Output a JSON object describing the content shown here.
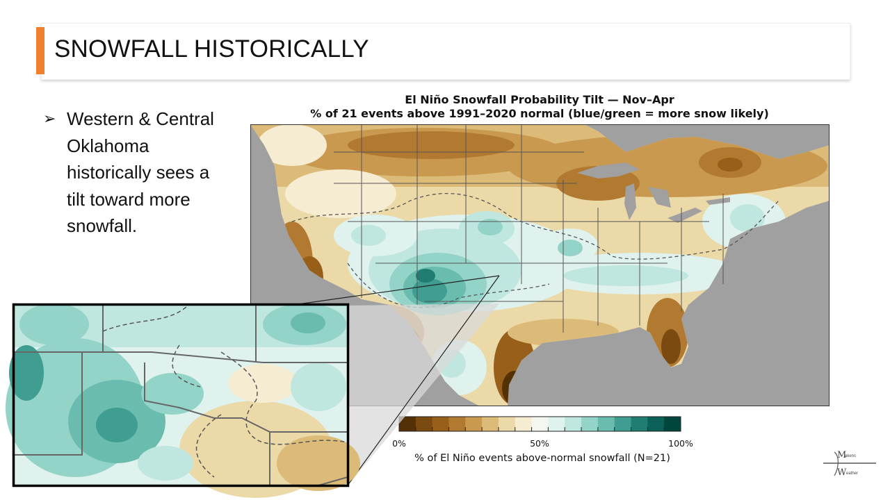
{
  "slide": {
    "title": "SNOWFALL HISTORICALLY",
    "accent_color": "#f07f2e"
  },
  "bullets": [
    {
      "marker_icon": "arrowhead-bullet-icon",
      "marker": "➢",
      "text": "Western & Central Oklahoma historically sees a tilt toward more snowfall."
    }
  ],
  "map": {
    "title": "El Niño Snowfall Probability Tilt — Nov–Apr",
    "subtitle": "% of 21 events above 1991–2020 normal  (blue/green = more snow likely)",
    "colorbar": {
      "ticks": [
        "0%",
        "50%",
        "100%"
      ],
      "caption": "% of El Niño events above-normal snowfall  (N=21)",
      "colors": [
        "#543005",
        "#7b4a10",
        "#985f1a",
        "#b27a30",
        "#c9994f",
        "#dcbb78",
        "#ecd9a8",
        "#f6ecd2",
        "#f3f7f0",
        "#dff2ee",
        "#bfe6df",
        "#93d3c8",
        "#69bcae",
        "#3f9d91",
        "#1f7d72",
        "#0b6158",
        "#00463d"
      ]
    },
    "inset_label": "zoom-inset-oklahoma",
    "colors": {
      "ocean": "#a0a0a0",
      "border": "#555555"
    }
  },
  "logo": {
    "line1": "Makens",
    "line2": "Weather"
  }
}
